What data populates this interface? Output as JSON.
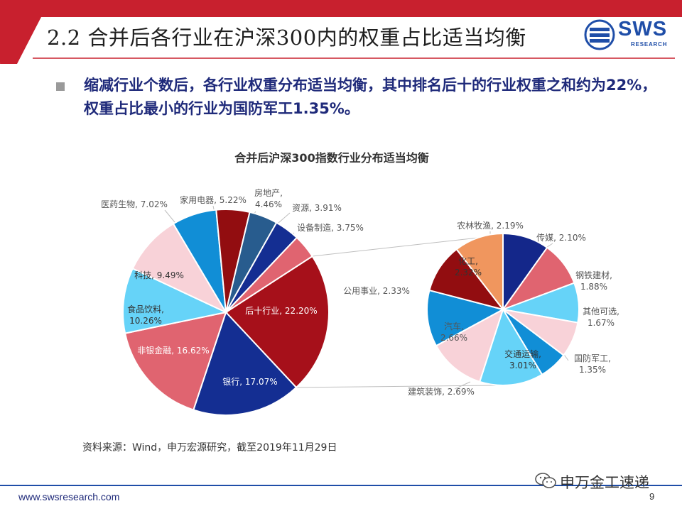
{
  "header": {
    "title": "2.2 合并后各行业在沪深300内的权重占比适当均衡",
    "logo_text": "SWS",
    "logo_sub": "RESEARCH"
  },
  "bullet": {
    "text": "缩减行业个数后，各行业权重分布适当均衡，其中排名后十的行业权重之和约为22%，权重占比最小的行业为国防军工1.35%。"
  },
  "chart_data": {
    "type": "pie",
    "title": "合并后沪深300指数行业分布适当均衡",
    "main": {
      "slices": [
        {
          "label": "后十行业",
          "value": 22.2,
          "display": "后十行业, 22.20%",
          "color": "#a6101a",
          "text_color": "#ffffff"
        },
        {
          "label": "银行",
          "value": 17.07,
          "display": "银行, 17.07%",
          "color": "#142e92",
          "text_color": "#ffffff"
        },
        {
          "label": "非银金融",
          "value": 16.62,
          "display": "非银金融, 16.62%",
          "color": "#e06470",
          "text_color": "#ffffff"
        },
        {
          "label": "食品饮料",
          "value": 10.26,
          "display": "食品饮料, 10.26%",
          "color": "#66d3f8",
          "text_color": "#333333"
        },
        {
          "label": "科技",
          "value": 9.49,
          "display": "科技, 9.49%",
          "color": "#f8d2d8",
          "text_color": "#333333"
        },
        {
          "label": "医药生物",
          "value": 7.02,
          "display": "医药生物, 7.02%",
          "color": "#118ed6",
          "text_color": "#555555"
        },
        {
          "label": "家用电器",
          "value": 5.22,
          "display": "家用电器, 5.22%",
          "color": "#920d10",
          "text_color": "#555555"
        },
        {
          "label": "房地产",
          "value": 4.46,
          "display": "房地产, 4.46%",
          "color": "#285c8e",
          "text_color": "#555555"
        },
        {
          "label": "资源",
          "value": 3.91,
          "display": "资源, 3.91%",
          "color": "#142e92",
          "text_color": "#555555"
        },
        {
          "label": "设备制造",
          "value": 3.75,
          "display": "设备制造, 3.75%",
          "color": "#e06470",
          "text_color": "#555555"
        }
      ]
    },
    "detail": {
      "slices": [
        {
          "label": "农林牧渔",
          "value": 2.19,
          "display": "农林牧渔, 2.19%",
          "color": "#14278a",
          "text_color": "#555555"
        },
        {
          "label": "传媒",
          "value": 2.1,
          "display": "传媒, 2.10%",
          "color": "#e06470",
          "text_color": "#555555"
        },
        {
          "label": "钢铁建材",
          "value": 1.88,
          "display": "钢铁建材, 1.88%",
          "color": "#66d3f8",
          "text_color": "#555555"
        },
        {
          "label": "其他可选",
          "value": 1.67,
          "display": "其他可选, 1.67%",
          "color": "#f8d2d8",
          "text_color": "#555555"
        },
        {
          "label": "国防军工",
          "value": 1.35,
          "display": "国防军工, 1.35%",
          "color": "#118ed6",
          "text_color": "#555555"
        },
        {
          "label": "交通运输",
          "value": 3.01,
          "display": "交通运输, 3.01%",
          "color": "#66d3f8",
          "text_color": "#333333"
        },
        {
          "label": "建筑装饰",
          "value": 2.69,
          "display": "建筑装饰, 2.69%",
          "color": "#f8d2d8",
          "text_color": "#555555"
        },
        {
          "label": "汽车",
          "value": 2.66,
          "display": "汽车, 2.66%",
          "color": "#118ed6",
          "text_color": "#555555"
        },
        {
          "label": "公用事业",
          "value": 2.33,
          "display": "公用事业, 2.33%",
          "color": "#920d10",
          "text_color": "#555555"
        },
        {
          "label": "化工",
          "value": 2.32,
          "display": "化工, 2.32%",
          "color": "#f0965e",
          "text_color": "#333333"
        }
      ]
    },
    "legend": "none"
  },
  "source": {
    "text": "资料来源：Wind，申万宏源研究，截至2019年11月29日"
  },
  "footer": {
    "url": "www.swsresearch.com",
    "page": "9",
    "watermark": "申万金工速递"
  },
  "colors": {
    "header_red": "#c8202e",
    "title_blue": "#1f2a7a",
    "brand_blue": "#1f4ea8"
  }
}
